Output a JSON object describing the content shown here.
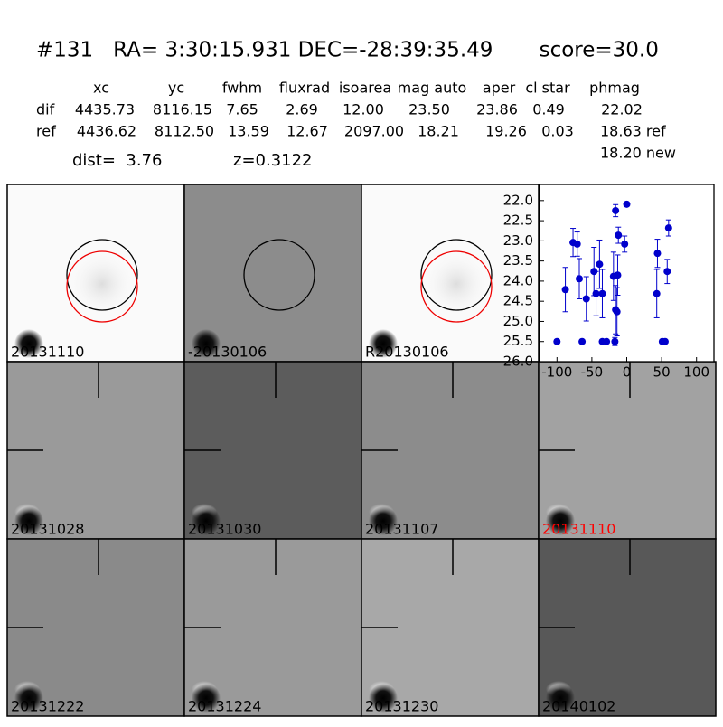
{
  "header": {
    "title": "#131   RA= 3:30:15.931 DEC=-28:39:35.49       score=30.0",
    "dist": "dist=  3.76",
    "z": "z=0.3122"
  },
  "table": {
    "columns": [
      "xc",
      "yc",
      "fwhm",
      "fluxrad",
      "isoarea",
      "mag auto",
      "aper",
      "cl star",
      "phmag"
    ],
    "rows": [
      {
        "label": "dif",
        "cells": [
          "4435.73",
          "8116.15",
          "7.65",
          "2.69",
          "12.00",
          "23.50",
          "23.86",
          "0.49",
          "22.02"
        ]
      },
      {
        "label": "ref",
        "cells": [
          "4436.62",
          "8112.50",
          "13.59",
          "12.67",
          "2097.00",
          "18.21",
          "19.26",
          "0.03",
          "18.63 ref"
        ]
      }
    ],
    "extra": "18.20 new"
  },
  "panels": [
    {
      "label": "20131110",
      "color": "#000000"
    },
    {
      "label": "-20130106",
      "color": "#000000"
    },
    {
      "label": "R20130106",
      "color": "#000000"
    },
    {
      "label": "20131028",
      "color": "#000000"
    },
    {
      "label": "20131030",
      "color": "#000000"
    },
    {
      "label": "20131107",
      "color": "#000000"
    },
    {
      "label": "20131110",
      "color": "#ff0000"
    },
    {
      "label": "20131222",
      "color": "#000000"
    },
    {
      "label": "20131224",
      "color": "#000000"
    },
    {
      "label": "20131230",
      "color": "#000000"
    },
    {
      "label": "20140102",
      "color": "#000000"
    }
  ],
  "chart_data": {
    "type": "scatter",
    "xlim": [
      -125,
      125
    ],
    "xticks": [
      -100,
      -50,
      0,
      50,
      100
    ],
    "ylim": [
      21.6,
      26.0
    ],
    "y_inverted": true,
    "yticks": [
      {
        "value": 22,
        "label": "22.0"
      },
      22.5,
      {
        "value": 23,
        "label": "23.0"
      },
      23.5,
      {
        "value": 24,
        "label": "24.0"
      },
      24.5,
      {
        "value": 25,
        "label": "25.0"
      },
      25.5,
      {
        "value": 26,
        "label": "26.0"
      }
    ],
    "series": [
      {
        "color": "#0000cc",
        "x": [
          -100,
          -88,
          -77,
          -71,
          -68,
          -64,
          -58,
          -47,
          -44,
          -39,
          -35,
          -35,
          -29,
          -19,
          -16,
          -17,
          -14,
          -13,
          -12,
          -16,
          -3,
          0,
          44,
          43,
          51,
          55,
          58,
          60
        ],
        "values": [
          25.5,
          24.21,
          23.04,
          23.08,
          23.94,
          25.5,
          24.44,
          23.76,
          24.31,
          23.58,
          24.31,
          25.5,
          25.5,
          23.88,
          22.25,
          25.5,
          24.76,
          23.85,
          22.86,
          24.71,
          23.08,
          22.09,
          23.31,
          24.31,
          25.5,
          25.5,
          23.76,
          22.68
        ],
        "error": [
          0.05,
          0.55,
          0.35,
          0.3,
          0.5,
          0.05,
          0.55,
          0.6,
          0.55,
          0.6,
          0.6,
          0.05,
          0.05,
          0.6,
          0.15,
          0.1,
          0.6,
          0.5,
          0.2,
          0.6,
          0.2,
          0.05,
          0.35,
          0.6,
          0.05,
          0.05,
          0.3,
          0.2
        ]
      }
    ]
  }
}
